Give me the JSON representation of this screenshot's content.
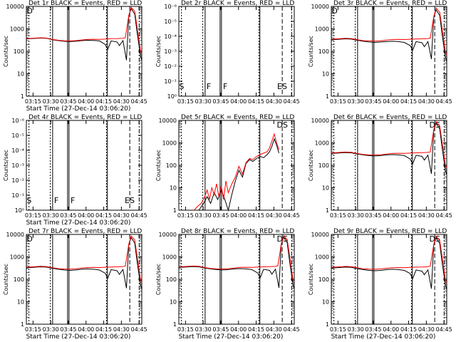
{
  "chart_data": [
    {
      "type": "line",
      "title": "Det 1r BLACK = Events, RED = LLD",
      "xlabel": "Start Time (27-Dec-14 03:06:20)",
      "ylabel": "Counts/sec",
      "yscale": "log",
      "ylim": [
        1,
        10000
      ],
      "ytick_labels": [
        "1",
        "10",
        "100",
        "1000",
        "10000"
      ],
      "xtick_labels": [
        "03:15",
        "03:30",
        "03:45",
        "04:00",
        "04:15",
        "04:30",
        "04:45"
      ],
      "xlim_minutes": [
        3,
        101
      ],
      "annotations": [
        "D"
      ],
      "series": [
        {
          "color": "#000000",
          "x": [
            3,
            8,
            15,
            20,
            25,
            30,
            35,
            40,
            45,
            50,
            55,
            60,
            65,
            70,
            72,
            75,
            80,
            82,
            85,
            88,
            90,
            92,
            95,
            97,
            100,
            101
          ],
          "y": [
            360,
            370,
            390,
            380,
            330,
            300,
            280,
            270,
            280,
            300,
            310,
            305,
            290,
            200,
            120,
            290,
            260,
            180,
            300,
            40,
            4000,
            8000,
            4500,
            700,
            60,
            40
          ]
        },
        {
          "color": "#ff0000",
          "x": [
            3,
            8,
            15,
            20,
            25,
            30,
            35,
            40,
            45,
            50,
            55,
            60,
            65,
            70,
            75,
            80,
            85,
            87,
            90,
            92,
            95,
            97,
            100,
            101
          ],
          "y": [
            370,
            380,
            400,
            390,
            340,
            310,
            295,
            290,
            300,
            320,
            340,
            345,
            340,
            350,
            365,
            370,
            380,
            400,
            4000,
            9000,
            6000,
            1200,
            100,
            80
          ]
        }
      ]
    },
    {
      "type": "line",
      "title": "Det 2r BLACK = Events, RED = LLD",
      "ylabel": "Counts/sec",
      "yscale": "log",
      "ytick_labels": [
        "10⁰",
        "10⁻¹",
        "10⁻²",
        "10⁻³",
        "10⁻⁴",
        "10⁻⁵",
        "10⁻⁶"
      ],
      "xtick_labels": [
        "03:15",
        "03:30",
        "03:45",
        "04:00",
        "04:15",
        "04:30",
        "04:45"
      ],
      "xlim_minutes": [
        3,
        101
      ],
      "annotations": [
        "S",
        "F",
        "F",
        "ES"
      ],
      "series": []
    },
    {
      "type": "line",
      "title": "Det 3r BLACK = Events, RED = LLD",
      "ylabel": "Counts/sec",
      "yscale": "log",
      "ylim": [
        1,
        10000
      ],
      "ytick_labels": [
        "1",
        "10",
        "100",
        "1000",
        "10000"
      ],
      "xtick_labels": [
        "03:15",
        "03:30",
        "03:45",
        "04:00",
        "04:15",
        "04:30",
        "04:45"
      ],
      "xlim_minutes": [
        3,
        101
      ],
      "annotations": [
        "D"
      ],
      "series": [
        {
          "color": "#000000",
          "x": [
            3,
            8,
            15,
            20,
            25,
            30,
            35,
            40,
            45,
            50,
            55,
            60,
            65,
            70,
            72,
            75,
            80,
            82,
            85,
            88,
            90,
            92,
            95,
            97,
            100,
            101
          ],
          "y": [
            330,
            340,
            360,
            350,
            310,
            280,
            260,
            250,
            260,
            270,
            280,
            270,
            250,
            180,
            110,
            270,
            240,
            160,
            270,
            45,
            3500,
            7000,
            4000,
            600,
            50,
            35
          ]
        },
        {
          "color": "#ff0000",
          "x": [
            3,
            8,
            15,
            20,
            25,
            30,
            35,
            40,
            45,
            50,
            55,
            60,
            65,
            70,
            75,
            80,
            85,
            87,
            90,
            92,
            95,
            97,
            100,
            101
          ],
          "y": [
            350,
            360,
            380,
            370,
            330,
            300,
            290,
            285,
            295,
            315,
            335,
            340,
            335,
            345,
            355,
            360,
            370,
            390,
            3500,
            8500,
            5500,
            1100,
            90,
            70
          ]
        }
      ]
    },
    {
      "type": "line",
      "title": "Det 4r BLACK = Events, RED = LLD",
      "xlabel": "Start Time (27-Dec-14 03:06:20)",
      "ylabel": "Counts/sec",
      "yscale": "log",
      "ytick_labels": [
        "10⁰",
        "10⁻¹",
        "10⁻²",
        "10⁻³",
        "10⁻⁴",
        "10⁻⁵",
        "10⁻⁶"
      ],
      "xtick_labels": [
        "03:15",
        "03:30",
        "03:45",
        "04:00",
        "04:15",
        "04:30",
        "04:45"
      ],
      "xlim_minutes": [
        3,
        101
      ],
      "annotations": [
        "S",
        "F",
        "F",
        "ES"
      ],
      "series": []
    },
    {
      "type": "line",
      "title": "Det 5r BLACK = Events, RED = LLD",
      "ylabel": "Counts/sec",
      "yscale": "log",
      "ylim": [
        1,
        10000
      ],
      "ytick_labels": [
        "1",
        "10",
        "100",
        "1000",
        "10000"
      ],
      "xtick_labels": [
        "03:15",
        "03:30",
        "03:45",
        "04:00",
        "04:15",
        "04:30",
        "04:45"
      ],
      "xlim_minutes": [
        3,
        101
      ],
      "annotations": [
        "DS"
      ],
      "series": [
        {
          "color": "#000000",
          "x": [
            20,
            24,
            27,
            30,
            33,
            36,
            39,
            42,
            45,
            48,
            51,
            54,
            57,
            60,
            63,
            66,
            69,
            72,
            75,
            78,
            80,
            82,
            84,
            86,
            88
          ],
          "y": [
            1,
            2,
            4,
            2,
            6,
            3,
            8,
            3,
            1,
            5,
            20,
            60,
            30,
            120,
            180,
            150,
            200,
            250,
            220,
            300,
            400,
            700,
            1500,
            800,
            350
          ]
        },
        {
          "color": "#ff0000",
          "x": [
            16,
            19,
            22,
            25,
            27,
            29,
            31,
            33,
            35,
            37,
            39,
            41,
            43,
            45,
            48,
            51,
            54,
            57,
            60,
            63,
            66,
            69,
            72,
            75,
            78,
            80,
            82,
            84,
            86,
            88
          ],
          "y": [
            1,
            1.5,
            2,
            4,
            8,
            3,
            10,
            5,
            15,
            4,
            12,
            3,
            20,
            6,
            15,
            30,
            90,
            40,
            130,
            200,
            180,
            250,
            300,
            350,
            400,
            600,
            1200,
            2500,
            1000,
            500
          ]
        }
      ]
    },
    {
      "type": "line",
      "title": "Det 6r BLACK = Events, RED = LLD",
      "ylabel": "Counts/sec",
      "yscale": "log",
      "ylim": [
        1,
        10000
      ],
      "ytick_labels": [
        "1",
        "10",
        "100",
        "1000",
        "10000"
      ],
      "xtick_labels": [
        "03:15",
        "03:30",
        "03:45",
        "04:00",
        "04:15",
        "04:30",
        "04:45"
      ],
      "xlim_minutes": [
        3,
        101
      ],
      "annotations": [
        "DS"
      ],
      "series": [
        {
          "color": "#000000",
          "x": [
            3,
            8,
            15,
            20,
            25,
            30,
            35,
            40,
            45,
            50,
            55,
            60,
            65,
            70,
            72,
            75,
            80,
            82,
            85,
            88,
            90,
            92,
            95,
            97,
            100,
            101
          ],
          "y": [
            340,
            350,
            370,
            360,
            320,
            290,
            270,
            260,
            270,
            290,
            300,
            290,
            270,
            190,
            115,
            280,
            250,
            170,
            285,
            42,
            3800,
            7500,
            4200,
            650,
            55,
            38
          ]
        },
        {
          "color": "#ff0000",
          "x": [
            3,
            8,
            15,
            20,
            25,
            30,
            35,
            40,
            45,
            50,
            55,
            60,
            65,
            70,
            75,
            80,
            85,
            87,
            90,
            92,
            95,
            97,
            100,
            101
          ],
          "y": [
            360,
            370,
            390,
            380,
            335,
            305,
            290,
            288,
            298,
            318,
            338,
            343,
            338,
            348,
            360,
            365,
            375,
            395,
            3800,
            8800,
            5800,
            1150,
            95,
            75
          ]
        }
      ]
    },
    {
      "type": "line",
      "title": "Det 7r BLACK = Events, RED = LLD",
      "xlabel": "Start Time (27-Dec-14 03:06:20)",
      "ylabel": "Counts/sec",
      "yscale": "log",
      "ylim": [
        1,
        10000
      ],
      "ytick_labels": [
        "1",
        "10",
        "100",
        "1000",
        "10000"
      ],
      "xtick_labels": [
        "03:15",
        "03:30",
        "03:45",
        "04:00",
        "04:15",
        "04:30",
        "04:45"
      ],
      "xlim_minutes": [
        3,
        101
      ],
      "annotations": [
        "D"
      ],
      "series": [
        {
          "color": "#000000",
          "x": [
            3,
            8,
            15,
            20,
            25,
            30,
            35,
            40,
            45,
            50,
            55,
            60,
            65,
            70,
            72,
            75,
            80,
            82,
            85,
            88,
            90,
            92,
            95,
            97,
            100,
            101
          ],
          "y": [
            330,
            340,
            360,
            350,
            310,
            280,
            260,
            250,
            260,
            280,
            290,
            280,
            260,
            185,
            110,
            270,
            240,
            165,
            275,
            40,
            3700,
            7200,
            4100,
            620,
            52,
            36
          ]
        },
        {
          "color": "#ff0000",
          "x": [
            3,
            8,
            15,
            20,
            25,
            30,
            35,
            40,
            45,
            50,
            55,
            60,
            65,
            70,
            75,
            80,
            85,
            87,
            90,
            92,
            95,
            97,
            100,
            101
          ],
          "y": [
            350,
            360,
            380,
            370,
            330,
            300,
            288,
            285,
            295,
            315,
            335,
            340,
            335,
            345,
            355,
            360,
            370,
            390,
            3700,
            8600,
            5600,
            1120,
            92,
            72
          ]
        }
      ]
    },
    {
      "type": "line",
      "title": "Det 8r BLACK = Events, RED = LLD",
      "xlabel": "Start Time (27-Dec-14 03:06:20)",
      "ylabel": "Counts/sec",
      "yscale": "log",
      "ylim": [
        1,
        10000
      ],
      "ytick_labels": [
        "1",
        "10",
        "100",
        "1000",
        "10000"
      ],
      "xtick_labels": [
        "03:15",
        "03:30",
        "03:45",
        "04:00",
        "04:15",
        "04:30",
        "04:45"
      ],
      "xlim_minutes": [
        3,
        101
      ],
      "annotations": [
        "DS"
      ],
      "series": [
        {
          "color": "#000000",
          "x": [
            3,
            8,
            15,
            20,
            25,
            30,
            35,
            40,
            45,
            50,
            55,
            60,
            65,
            70,
            72,
            75,
            80,
            82,
            85,
            88,
            90,
            92,
            95,
            97,
            100,
            101
          ],
          "y": [
            340,
            350,
            370,
            360,
            320,
            290,
            270,
            260,
            270,
            290,
            300,
            290,
            270,
            190,
            115,
            280,
            250,
            170,
            285,
            42,
            3800,
            7500,
            4200,
            650,
            55,
            38
          ]
        },
        {
          "color": "#ff0000",
          "x": [
            3,
            8,
            15,
            20,
            25,
            30,
            35,
            40,
            45,
            50,
            55,
            60,
            65,
            70,
            75,
            80,
            85,
            87,
            90,
            92,
            95,
            97,
            100,
            101
          ],
          "y": [
            360,
            370,
            390,
            380,
            335,
            305,
            290,
            288,
            298,
            318,
            338,
            343,
            338,
            348,
            360,
            365,
            375,
            395,
            3800,
            8800,
            5800,
            1150,
            95,
            75
          ]
        }
      ]
    },
    {
      "type": "line",
      "title": "Det 9r BLACK = Events, RED = LLD",
      "xlabel": "Start Time (27-Dec-14 03:06:20)",
      "ylabel": "Counts/sec",
      "yscale": "log",
      "ylim": [
        1,
        10000
      ],
      "ytick_labels": [
        "1",
        "10",
        "100",
        "1000",
        "10000"
      ],
      "xtick_labels": [
        "03:15",
        "03:30",
        "03:45",
        "04:00",
        "04:15",
        "04:30",
        "04:45"
      ],
      "xlim_minutes": [
        3,
        101
      ],
      "annotations": [
        "DS"
      ],
      "series": [
        {
          "color": "#000000",
          "x": [
            3,
            8,
            15,
            20,
            25,
            30,
            35,
            40,
            45,
            50,
            55,
            60,
            65,
            70,
            72,
            75,
            80,
            82,
            85,
            88,
            90,
            92,
            95,
            97,
            100,
            101
          ],
          "y": [
            320,
            330,
            350,
            340,
            300,
            270,
            250,
            240,
            250,
            270,
            280,
            270,
            250,
            180,
            105,
            260,
            230,
            160,
            265,
            38,
            3600,
            7000,
            4000,
            600,
            50,
            35
          ]
        },
        {
          "color": "#ff0000",
          "x": [
            3,
            8,
            15,
            20,
            25,
            30,
            35,
            40,
            45,
            50,
            55,
            60,
            65,
            70,
            75,
            80,
            85,
            87,
            90,
            92,
            95,
            97,
            100,
            101
          ],
          "y": [
            345,
            355,
            375,
            365,
            325,
            295,
            283,
            280,
            290,
            310,
            330,
            335,
            330,
            340,
            350,
            355,
            365,
            385,
            3600,
            8400,
            5400,
            1100,
            90,
            70
          ]
        }
      ]
    }
  ]
}
